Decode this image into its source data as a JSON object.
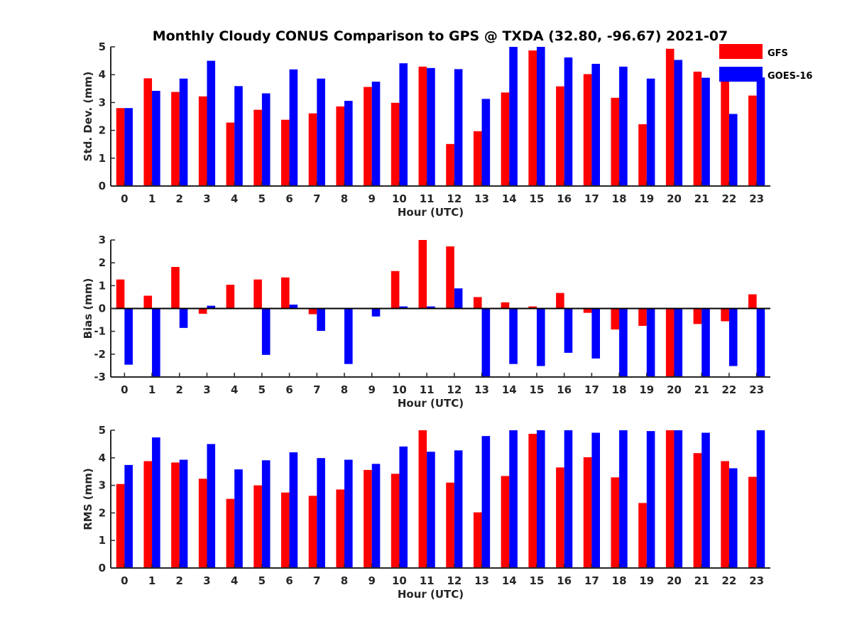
{
  "chart_data": {
    "type": "bar",
    "title": "Monthly Cloudy CONUS Comparison to GPS @ TXDA (32.80, -96.67) 2021-07",
    "legend": {
      "placement": "top-right",
      "entries": [
        "GFS",
        "GOES-16"
      ]
    },
    "colors": {
      "GFS": "#ff0000",
      "GOES-16": "#0000ff"
    },
    "categories": [
      "0",
      "1",
      "2",
      "3",
      "4",
      "5",
      "6",
      "7",
      "8",
      "9",
      "10",
      "11",
      "12",
      "13",
      "14",
      "15",
      "16",
      "17",
      "18",
      "19",
      "20",
      "21",
      "22",
      "23"
    ],
    "panels": [
      {
        "xlabel": "Hour (UTC)",
        "ylabel": "Std. Dev. (mm)",
        "ylim": [
          0,
          5
        ],
        "yticks": [
          "0",
          "1",
          "2",
          "3",
          "4",
          "5"
        ],
        "series": [
          {
            "name": "GFS",
            "values": [
              2.8,
              3.87,
              3.38,
              3.22,
              2.28,
              2.74,
              2.38,
              2.61,
              2.86,
              3.56,
              2.99,
              4.29,
              1.51,
              1.97,
              3.36,
              4.87,
              3.58,
              4.02,
              3.17,
              2.22,
              4.93,
              4.11,
              3.84,
              3.25
            ]
          },
          {
            "name": "GOES-16",
            "values": [
              2.8,
              3.42,
              3.86,
              4.5,
              3.59,
              3.33,
              4.19,
              3.86,
              3.06,
              3.75,
              4.41,
              4.24,
              4.2,
              3.13,
              5.0,
              5.0,
              4.62,
              4.39,
              4.29,
              3.86,
              4.53,
              3.89,
              2.59,
              3.9
            ]
          }
        ]
      },
      {
        "xlabel": "Hour (UTC)",
        "ylabel": "Bias (mm)",
        "ylim": [
          -3,
          3
        ],
        "yticks": [
          "-3",
          "-2",
          "-1",
          "0",
          "1",
          "2",
          "3"
        ],
        "series": [
          {
            "name": "GFS",
            "values": [
              1.27,
              0.56,
              1.82,
              -0.23,
              1.04,
              1.27,
              1.36,
              -0.25,
              -0.03,
              0.02,
              1.64,
              3.0,
              2.72,
              0.5,
              0.27,
              0.09,
              0.68,
              -0.19,
              -0.92,
              -0.76,
              -3.0,
              -0.68,
              -0.56,
              0.62
            ]
          },
          {
            "name": "GOES-16",
            "values": [
              -2.46,
              -3.0,
              -0.85,
              0.12,
              0.0,
              -2.03,
              0.17,
              -0.98,
              -2.43,
              -0.35,
              0.09,
              0.09,
              0.88,
              -3.0,
              -2.43,
              -2.52,
              -1.94,
              -2.19,
              -3.0,
              -3.0,
              -3.0,
              -3.0,
              -2.52,
              -3.0
            ]
          }
        ]
      },
      {
        "xlabel": "Hour (UTC)",
        "ylabel": "RMS (mm)",
        "ylim": [
          0,
          5
        ],
        "yticks": [
          "0",
          "1",
          "2",
          "3",
          "4",
          "5"
        ],
        "series": [
          {
            "name": "GFS",
            "values": [
              3.05,
              3.88,
              3.83,
              3.24,
              2.51,
              3.0,
              2.74,
              2.62,
              2.85,
              3.56,
              3.42,
              5.0,
              3.1,
              2.02,
              3.34,
              4.87,
              3.65,
              4.02,
              3.29,
              2.36,
              5.0,
              4.17,
              3.88,
              3.31
            ]
          },
          {
            "name": "GOES-16",
            "values": [
              3.74,
              4.74,
              3.93,
              4.5,
              3.58,
              3.91,
              4.2,
              3.99,
              3.93,
              3.78,
              4.41,
              4.22,
              4.27,
              4.79,
              5.0,
              5.0,
              5.0,
              4.91,
              5.0,
              4.97,
              5.0,
              4.91,
              3.62,
              5.0
            ]
          }
        ]
      }
    ]
  }
}
